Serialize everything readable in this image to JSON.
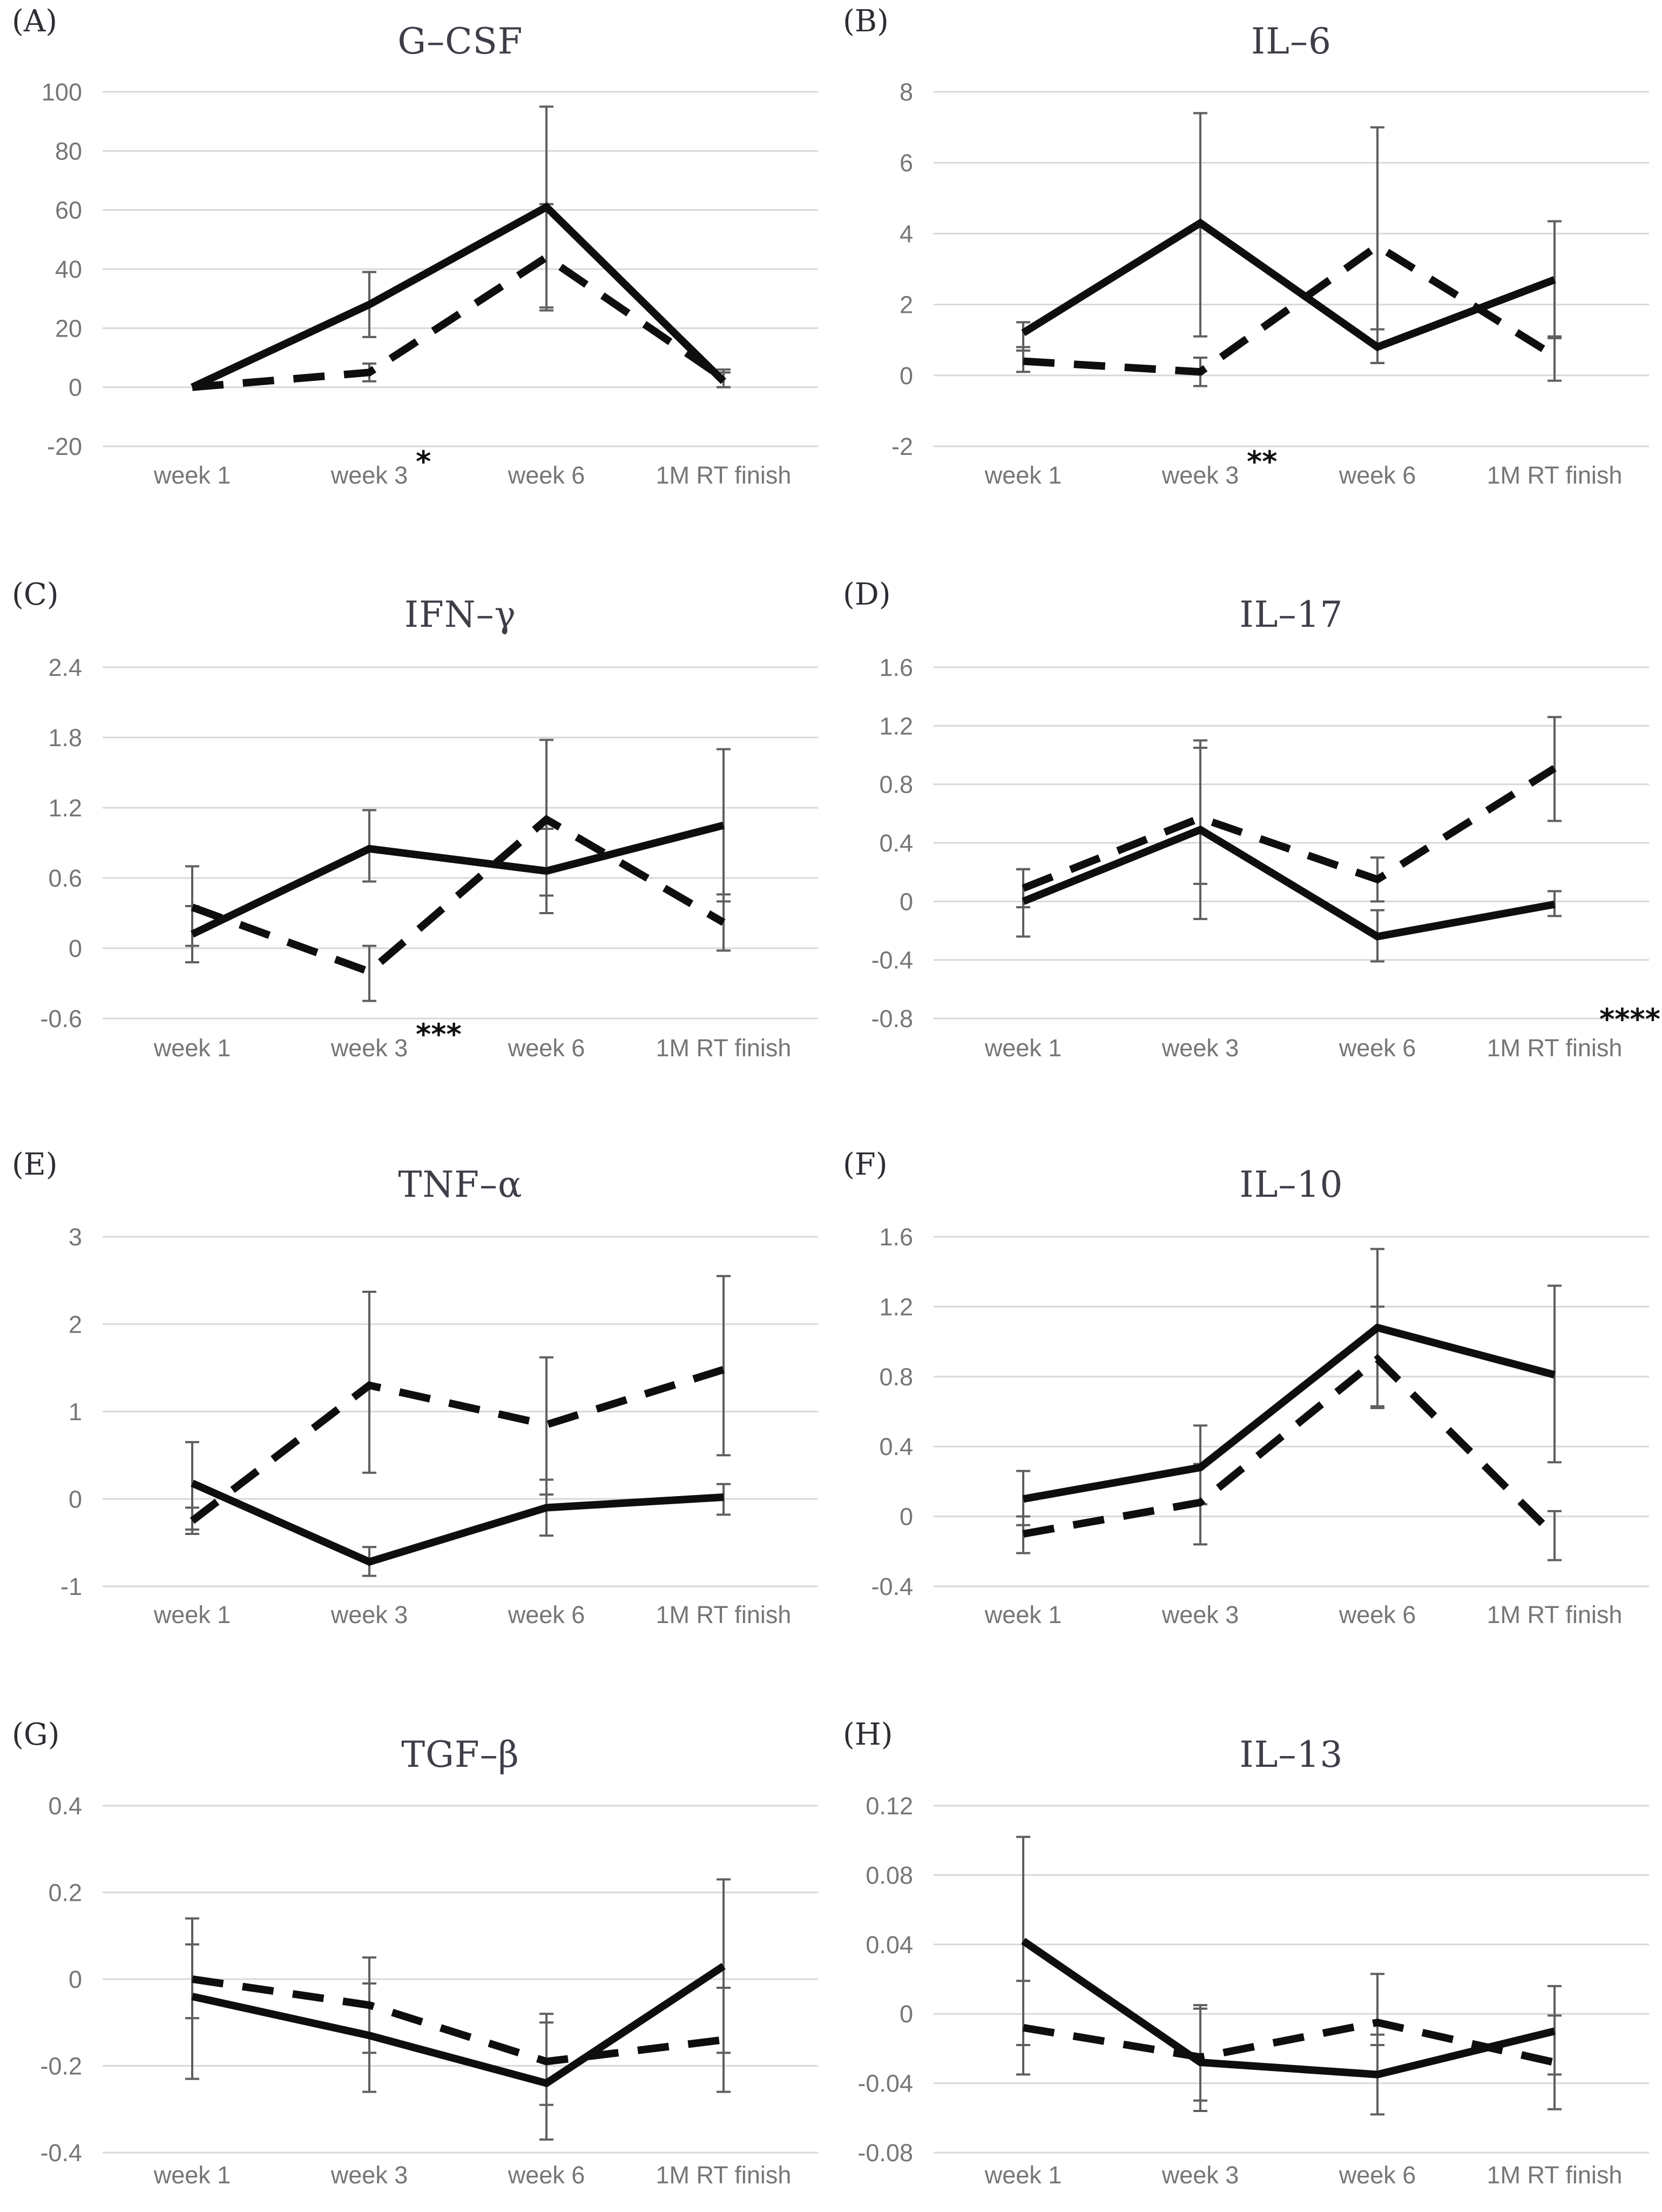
{
  "figure": {
    "description_labels": [
      "(A)",
      "(B)",
      "(C)",
      "(D)",
      "(E)",
      "(F)",
      "(G)",
      "(H)"
    ]
  },
  "colors": {
    "background": "#ffffff",
    "line": "#0e0e0e",
    "gridline": "#d8d8d8",
    "tick_label": "#767676",
    "error_bar": "#5f5f5f",
    "title": "#3e3e48",
    "panel_label": "#2d2d34",
    "annotation": "#101010"
  },
  "chart_data": [
    {
      "type": "line",
      "panel": "(A)",
      "title": "G–CSF",
      "categories": [
        "week 1",
        "week 3",
        "week 6",
        "1M RT finish"
      ],
      "yticks": [
        100,
        80,
        60,
        40,
        20,
        0,
        -20
      ],
      "ylim": [
        -20,
        100
      ],
      "grid": true,
      "legend": "none",
      "annotation": {
        "text": "*",
        "anchor": "week-3"
      },
      "series": [
        {
          "style": "solid",
          "values": [
            0,
            28,
            61,
            2
          ],
          "errors": [
            null,
            [
              17,
              39
            ],
            [
              27,
              95
            ],
            [
              0,
              5
            ]
          ]
        },
        {
          "style": "dashed",
          "values": [
            0,
            5,
            44,
            3
          ],
          "errors": [
            null,
            [
              2,
              8
            ],
            [
              26,
              62
            ],
            [
              0,
              6
            ]
          ]
        }
      ]
    },
    {
      "type": "line",
      "panel": "(B)",
      "title": "IL–6",
      "categories": [
        "week 1",
        "week 3",
        "week 6",
        "1M RT finish"
      ],
      "yticks": [
        8,
        6,
        4,
        2,
        0,
        -2
      ],
      "ylim": [
        -2,
        8
      ],
      "grid": true,
      "legend": "none",
      "annotation": {
        "text": "**",
        "anchor": "week-3"
      },
      "series": [
        {
          "style": "solid",
          "values": [
            1.2,
            4.3,
            0.8,
            2.7
          ],
          "errors": [
            [
              0.7,
              1.5
            ],
            [
              1.1,
              7.4
            ],
            [
              0.35,
              1.3
            ],
            [
              1.05,
              4.35
            ]
          ]
        },
        {
          "style": "dashed",
          "values": [
            0.4,
            0.1,
            3.65,
            0.55
          ],
          "errors": [
            [
              0.1,
              0.8
            ],
            [
              -0.3,
              0.5
            ],
            [
              0.35,
              7.0
            ],
            [
              -0.15,
              1.1
            ]
          ]
        }
      ]
    },
    {
      "type": "line",
      "panel": "(C)",
      "title": "IFN–γ",
      "categories": [
        "week 1",
        "week 3",
        "week 6",
        "1M RT finish"
      ],
      "yticks": [
        2.4,
        1.8,
        1.2,
        0.6,
        0,
        -0.6
      ],
      "ylim": [
        -0.6,
        2.4
      ],
      "grid": true,
      "legend": "none",
      "annotation": {
        "text": "***",
        "anchor": "week-3"
      },
      "series": [
        {
          "style": "solid",
          "values": [
            0.12,
            0.85,
            0.66,
            1.05
          ],
          "errors": [
            [
              -0.12,
              0.36
            ],
            [
              0.57,
              1.18
            ],
            [
              0.3,
              1.02
            ],
            [
              0.4,
              1.7
            ]
          ]
        },
        {
          "style": "dashed",
          "values": [
            0.35,
            -0.2,
            1.1,
            0.22
          ],
          "errors": [
            [
              0.02,
              0.7
            ],
            [
              -0.45,
              0.02
            ],
            [
              0.45,
              1.78
            ],
            [
              -0.02,
              0.46
            ]
          ]
        }
      ]
    },
    {
      "type": "line",
      "panel": "(D)",
      "title": "IL–17",
      "categories": [
        "week 1",
        "week 3",
        "week 6",
        "1M RT finish"
      ],
      "yticks": [
        1.6,
        1.2,
        0.8,
        0.4,
        0,
        -0.4,
        -0.8
      ],
      "ylim": [
        -0.8,
        1.6
      ],
      "grid": true,
      "legend": "none",
      "annotation": {
        "text": "****",
        "anchor": "plot-right"
      },
      "series": [
        {
          "style": "solid",
          "values": [
            0.0,
            0.49,
            -0.24,
            -0.02
          ],
          "errors": [
            [
              -0.24,
              0.22
            ],
            [
              -0.12,
              1.05
            ],
            [
              -0.41,
              -0.06
            ],
            [
              -0.1,
              0.07
            ]
          ]
        },
        {
          "style": "dashed",
          "values": [
            0.09,
            0.57,
            0.15,
            0.91
          ],
          "errors": [
            [
              -0.04,
              0.22
            ],
            [
              0.12,
              1.1
            ],
            [
              0.0,
              0.3
            ],
            [
              0.55,
              1.26
            ]
          ]
        }
      ]
    },
    {
      "type": "line",
      "panel": "(E)",
      "title": "TNF–α",
      "categories": [
        "week 1",
        "week 3",
        "week 6",
        "1M RT finish"
      ],
      "yticks": [
        3,
        2,
        1,
        0,
        -1
      ],
      "ylim": [
        -1,
        3
      ],
      "grid": true,
      "legend": "none",
      "annotation": null,
      "series": [
        {
          "style": "solid",
          "values": [
            0.18,
            -0.72,
            -0.1,
            0.02
          ],
          "errors": [
            [
              -0.35,
              0.65
            ],
            [
              -0.88,
              -0.55
            ],
            [
              -0.42,
              0.22
            ],
            [
              -0.18,
              0.17
            ]
          ]
        },
        {
          "style": "dashed",
          "values": [
            -0.25,
            1.3,
            0.85,
            1.48
          ],
          "errors": [
            [
              -0.4,
              -0.1
            ],
            [
              0.3,
              2.37
            ],
            [
              0.05,
              1.62
            ],
            [
              0.5,
              2.55
            ]
          ]
        }
      ]
    },
    {
      "type": "line",
      "panel": "(F)",
      "title": "IL–10",
      "categories": [
        "week 1",
        "week 3",
        "week 6",
        "1M RT finish"
      ],
      "yticks": [
        1.6,
        1.2,
        0.8,
        0.4,
        0,
        -0.4
      ],
      "ylim": [
        -0.4,
        1.6
      ],
      "grid": true,
      "legend": "none",
      "annotation": null,
      "series": [
        {
          "style": "solid",
          "values": [
            0.1,
            0.28,
            1.08,
            0.81
          ],
          "errors": [
            [
              -0.05,
              0.26
            ],
            [
              0.07,
              0.52
            ],
            [
              0.63,
              1.53
            ],
            [
              0.31,
              1.32
            ]
          ]
        },
        {
          "style": "dashed",
          "values": [
            -0.1,
            0.08,
            0.9,
            -0.11
          ],
          "errors": [
            [
              -0.21,
              0.0
            ],
            [
              -0.16,
              0.3
            ],
            [
              0.62,
              1.2
            ],
            [
              -0.25,
              0.03
            ]
          ]
        }
      ]
    },
    {
      "type": "line",
      "panel": "(G)",
      "title": "TGF–β",
      "categories": [
        "week 1",
        "week 3",
        "week 6",
        "1M RT finish"
      ],
      "yticks": [
        0.4,
        0.2,
        0,
        -0.2,
        -0.4
      ],
      "ylim": [
        -0.4,
        0.4
      ],
      "grid": true,
      "legend": "none",
      "annotation": null,
      "series": [
        {
          "style": "solid",
          "values": [
            -0.04,
            -0.13,
            -0.24,
            0.03
          ],
          "errors": [
            [
              -0.23,
              0.14
            ],
            [
              -0.26,
              0.05
            ],
            [
              -0.37,
              -0.1
            ],
            [
              -0.26,
              0.23
            ]
          ]
        },
        {
          "style": "dashed",
          "values": [
            0.0,
            -0.06,
            -0.19,
            -0.14
          ],
          "errors": [
            [
              -0.09,
              0.08
            ],
            [
              -0.17,
              -0.01
            ],
            [
              -0.29,
              -0.08
            ],
            [
              -0.17,
              -0.02
            ]
          ]
        }
      ]
    },
    {
      "type": "line",
      "panel": "(H)",
      "title": "IL–13",
      "categories": [
        "week 1",
        "week 3",
        "week 6",
        "1M RT finish"
      ],
      "yticks": [
        0.12,
        0.08,
        0.04,
        0,
        -0.04,
        -0.08
      ],
      "ylim": [
        -0.08,
        0.12
      ],
      "grid": true,
      "legend": "none",
      "annotation": null,
      "series": [
        {
          "style": "solid",
          "values": [
            0.042,
            -0.028,
            -0.035,
            -0.01
          ],
          "errors": [
            [
              -0.035,
              0.102
            ],
            [
              -0.05,
              0.005
            ],
            [
              -0.058,
              -0.012
            ],
            [
              -0.035,
              0.016
            ]
          ]
        },
        {
          "style": "dashed",
          "values": [
            -0.008,
            -0.025,
            -0.005,
            -0.028
          ],
          "errors": [
            [
              -0.018,
              0.019
            ],
            [
              -0.056,
              0.003
            ],
            [
              -0.018,
              0.023
            ],
            [
              -0.055,
              -0.001
            ]
          ]
        }
      ]
    }
  ]
}
